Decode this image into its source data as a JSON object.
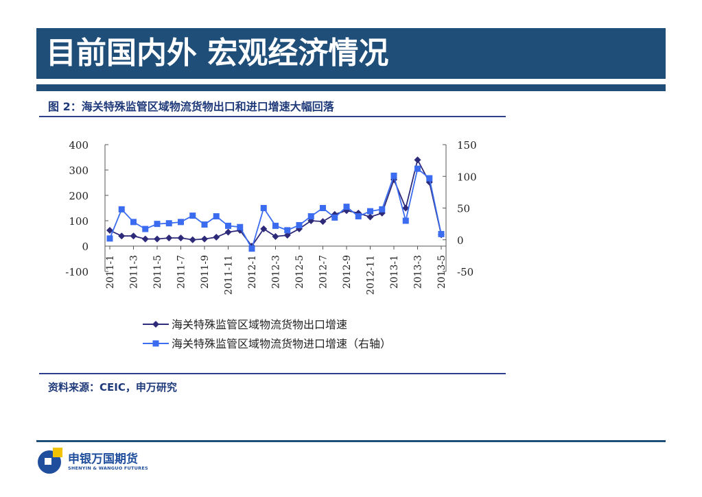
{
  "slide": {
    "title": "目前国内外  宏观经济情况",
    "figure_caption": "图 2：海关特殊监管区域物流货物出口和进口增速大幅回落",
    "source": "资料来源：CEIC，申万研究"
  },
  "logo": {
    "name_cn": "申银万国期货",
    "name_en": "SHENYIN & WANGUO FUTURES"
  },
  "colors": {
    "header": "#1f4e79",
    "export_series": "#2e2a7a",
    "import_series": "#3b6cf0"
  },
  "chart_data": {
    "type": "line",
    "x_tick_labels": [
      "2011-1",
      "2011-3",
      "2011-5",
      "2011-7",
      "2011-9",
      "2011-11",
      "2012-1",
      "2012-3",
      "2012-5",
      "2012-7",
      "2012-9",
      "2012-11",
      "2013-1",
      "2013-3",
      "2013-5"
    ],
    "x": [
      "2011-1",
      "2011-2",
      "2011-3",
      "2011-4",
      "2011-5",
      "2011-6",
      "2011-7",
      "2011-8",
      "2011-9",
      "2011-10",
      "2011-11",
      "2011-12",
      "2012-1",
      "2012-2",
      "2012-3",
      "2012-4",
      "2012-5",
      "2012-6",
      "2012-7",
      "2012-8",
      "2012-9",
      "2012-10",
      "2012-11",
      "2012-12",
      "2013-1",
      "2013-2",
      "2013-3",
      "2013-4",
      "2013-5"
    ],
    "y_left": {
      "range": [
        -100,
        400
      ],
      "ticks": [
        "400",
        "300",
        "200",
        "100",
        "0",
        "-100"
      ]
    },
    "y_right": {
      "range": [
        -50,
        150
      ],
      "ticks": [
        "150",
        "100",
        "50",
        "0",
        "-50"
      ]
    },
    "series": [
      {
        "name": "海关特殊监管区域物流货物出口增速",
        "axis": "left",
        "marker": "diamond",
        "values": [
          62,
          40,
          40,
          28,
          28,
          32,
          32,
          25,
          28,
          35,
          55,
          62,
          0,
          68,
          38,
          43,
          68,
          100,
          97,
          125,
          140,
          130,
          115,
          130,
          262,
          150,
          340,
          252,
          45
        ]
      },
      {
        "name": "海关特殊监管区域物流货物进口增速（右轴）",
        "axis": "right",
        "marker": "square",
        "values": [
          2,
          48,
          28,
          17,
          25,
          26,
          28,
          38,
          24,
          37,
          22,
          20,
          -14,
          50,
          22,
          15,
          23,
          37,
          50,
          35,
          52,
          37,
          45,
          48,
          101,
          30,
          112,
          97,
          9
        ]
      }
    ],
    "legend_position": "bottom",
    "grid": false
  }
}
